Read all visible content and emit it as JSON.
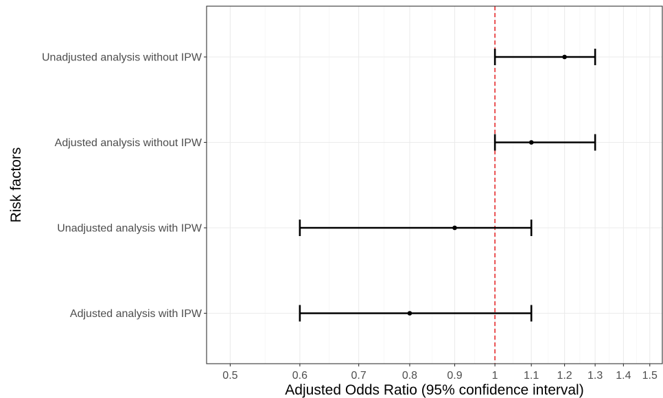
{
  "chart_data": {
    "type": "forest",
    "xlabel": "Adjusted Odds Ratio (95% confidence interval)",
    "ylabel": "Risk factors",
    "x_scale": "log",
    "xlim": [
      0.47,
      1.55
    ],
    "x_ticks": [
      0.5,
      0.6,
      0.7,
      0.8,
      0.9,
      1,
      1.1,
      1.2,
      1.3,
      1.4,
      1.5
    ],
    "x_tick_labels": [
      "0.5",
      "0.6",
      "0.7",
      "0.8",
      "0.9",
      "1",
      "1.1",
      "1.2",
      "1.3",
      "1.4",
      "1.5"
    ],
    "reference_line": {
      "x": 1,
      "color": "#e41a1c",
      "style": "dashed"
    },
    "grid": true,
    "legend": "none",
    "categories": [
      "Unadjusted analysis without IPW",
      "Adjusted analysis without IPW",
      "Unadjusted analysis with IPW",
      "Adjusted analysis with IPW"
    ],
    "estimates": [
      1.2,
      1.1,
      0.9,
      0.8
    ],
    "ci_lower": [
      1.0,
      1.0,
      0.6,
      0.6
    ],
    "ci_upper": [
      1.3,
      1.3,
      1.1,
      1.1
    ]
  }
}
